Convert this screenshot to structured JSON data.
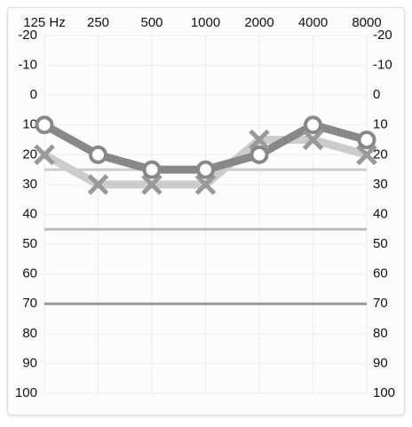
{
  "chart_data": {
    "type": "audiogram",
    "categories": [
      "125 Hz",
      "250",
      "500",
      "1000",
      "2000",
      "4000",
      "8000"
    ],
    "ylim": [
      -20,
      100
    ],
    "y_inverted": true,
    "yticks": [
      -20,
      -10,
      0,
      10,
      20,
      30,
      40,
      50,
      60,
      70,
      80,
      90,
      100
    ],
    "grid": true,
    "reference_lines": [
      {
        "value": 25,
        "color": "#cccccc"
      },
      {
        "value": 45,
        "color": "#bbbbbb"
      },
      {
        "value": 70,
        "color": "#999999"
      }
    ],
    "series": [
      {
        "marker": "x",
        "color": "#cccccc",
        "marker_color": "#999999",
        "values": [
          20,
          30,
          30,
          30,
          15,
          15,
          20
        ]
      },
      {
        "marker": "o",
        "color": "#888888",
        "marker_color": "#888888",
        "values": [
          10,
          20,
          25,
          25,
          20,
          10,
          15
        ]
      }
    ]
  }
}
